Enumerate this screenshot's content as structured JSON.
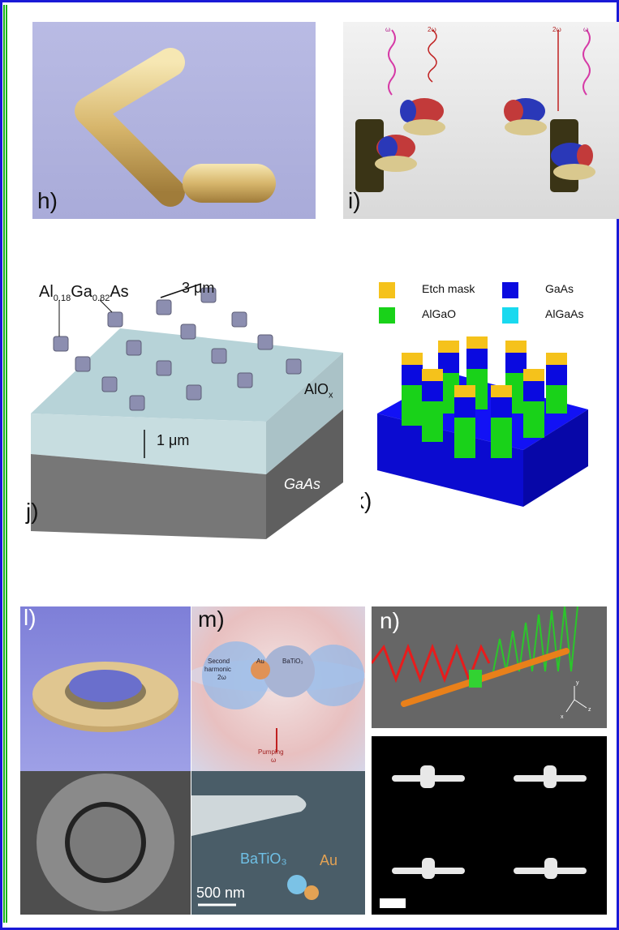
{
  "panels": {
    "h": {
      "label": "h)"
    },
    "i": {
      "label": "i)",
      "annotations": [
        "ω",
        "2ω",
        "2ω",
        "ω"
      ]
    },
    "j": {
      "label": "j)",
      "alloy": "Al",
      "alloy_sub1": "0.18",
      "alloy_mid": "Ga",
      "alloy_sub2": "0.82",
      "alloy_end": "As",
      "pitch": "3 μm",
      "layer": "AlO",
      "layer_sub": "x",
      "thickness": "1 μm",
      "substrate": "GaAs"
    },
    "k": {
      "label": "k)",
      "legend": [
        {
          "text": "Etch mask",
          "color": "#f5c21b"
        },
        {
          "text": "GaAs",
          "color": "#0a0ae0"
        },
        {
          "text": "AlGaO",
          "color": "#19d219"
        },
        {
          "text": "AlGaAs",
          "color": "#19d9ef"
        }
      ]
    },
    "l": {
      "label": "l)"
    },
    "m": {
      "label": "m)",
      "tags": [
        "Second",
        "harmonic",
        "2ω",
        "Au",
        "BaTiO₃",
        "Pumping",
        "ω"
      ],
      "sem_tags": [
        "BaTiO₃",
        "Au"
      ],
      "scale": "500 nm"
    },
    "n": {
      "label": "n)",
      "axes": [
        "x",
        "y",
        "z"
      ]
    }
  },
  "colors": {
    "frame_blue": "#1a1ad6",
    "frame_green": "#16b316"
  }
}
